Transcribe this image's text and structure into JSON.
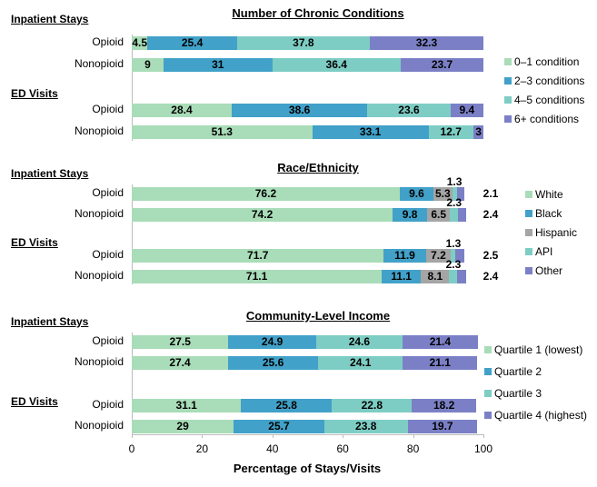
{
  "chart_data": [
    {
      "type": "bar",
      "orientation": "horizontal",
      "stacked": true,
      "title": "Number of Chronic Conditions",
      "groups": [
        {
          "label": "Inpatient Stays",
          "rows": [
            {
              "category": "Opioid",
              "values": [
                4.5,
                25.4,
                37.8,
                32.3
              ]
            },
            {
              "category": "Nonopioid",
              "values": [
                9.0,
                31.0,
                36.4,
                23.7
              ]
            }
          ]
        },
        {
          "label": "ED Visits",
          "rows": [
            {
              "category": "Opioid",
              "values": [
                28.4,
                38.6,
                23.6,
                9.4
              ]
            },
            {
              "category": "Nonopioid",
              "values": [
                51.3,
                33.1,
                12.7,
                3.0
              ]
            }
          ]
        }
      ],
      "series": [
        {
          "name": "0–1 condition",
          "color": "#a9dcb8"
        },
        {
          "name": "2–3 conditions",
          "color": "#41a1c9"
        },
        {
          "name": "4–5 conditions",
          "color": "#7ecdc4"
        },
        {
          "name": "6+ conditions",
          "color": "#7b80c6"
        }
      ],
      "legend": "right"
    },
    {
      "type": "bar",
      "orientation": "horizontal",
      "stacked": true,
      "title": "Race/Ethnicity",
      "groups": [
        {
          "label": "Inpatient Stays",
          "rows": [
            {
              "category": "Opioid",
              "values": [
                76.2,
                9.6,
                5.3,
                1.3,
                2.1
              ]
            },
            {
              "category": "Nonopioid",
              "values": [
                74.2,
                9.8,
                6.5,
                2.3,
                2.4
              ]
            }
          ]
        },
        {
          "label": "ED Visits",
          "rows": [
            {
              "category": "Opioid",
              "values": [
                71.7,
                11.9,
                7.2,
                1.3,
                2.5
              ]
            },
            {
              "category": "Nonopioid",
              "values": [
                71.1,
                11.1,
                8.1,
                2.3,
                2.4
              ]
            }
          ]
        }
      ],
      "series": [
        {
          "name": "White",
          "color": "#a9dcb8"
        },
        {
          "name": "Black",
          "color": "#41a1c9"
        },
        {
          "name": "Hispanic",
          "color": "#a5a5a5"
        },
        {
          "name": "API",
          "color": "#7ecdc4"
        },
        {
          "name": "Other",
          "color": "#7b80c6"
        }
      ],
      "legend": "right"
    },
    {
      "type": "bar",
      "orientation": "horizontal",
      "stacked": true,
      "title": "Community-Level Income",
      "groups": [
        {
          "label": "Inpatient Stays",
          "rows": [
            {
              "category": "Opioid",
              "values": [
                27.5,
                24.9,
                24.6,
                21.4
              ]
            },
            {
              "category": "Nonopioid",
              "values": [
                27.4,
                25.6,
                24.1,
                21.1
              ]
            }
          ]
        },
        {
          "label": "ED Visits",
          "rows": [
            {
              "category": "Opioid",
              "values": [
                31.1,
                25.8,
                22.8,
                18.2
              ]
            },
            {
              "category": "Nonopioid",
              "values": [
                29.0,
                25.7,
                23.8,
                19.7
              ]
            }
          ]
        }
      ],
      "series": [
        {
          "name": "Quartile 1 (lowest)",
          "color": "#a9dcb8"
        },
        {
          "name": "Quartile 2",
          "color": "#41a1c9"
        },
        {
          "name": "Quartile 3",
          "color": "#7ecdc4"
        },
        {
          "name": "Quartile 4 (highest)",
          "color": "#7b80c6"
        }
      ],
      "legend": "right",
      "xlabel": "Percentage of Stays/Visits",
      "xlim": [
        0,
        100
      ],
      "xticks": [
        0,
        20,
        40,
        60,
        80,
        100
      ]
    }
  ]
}
